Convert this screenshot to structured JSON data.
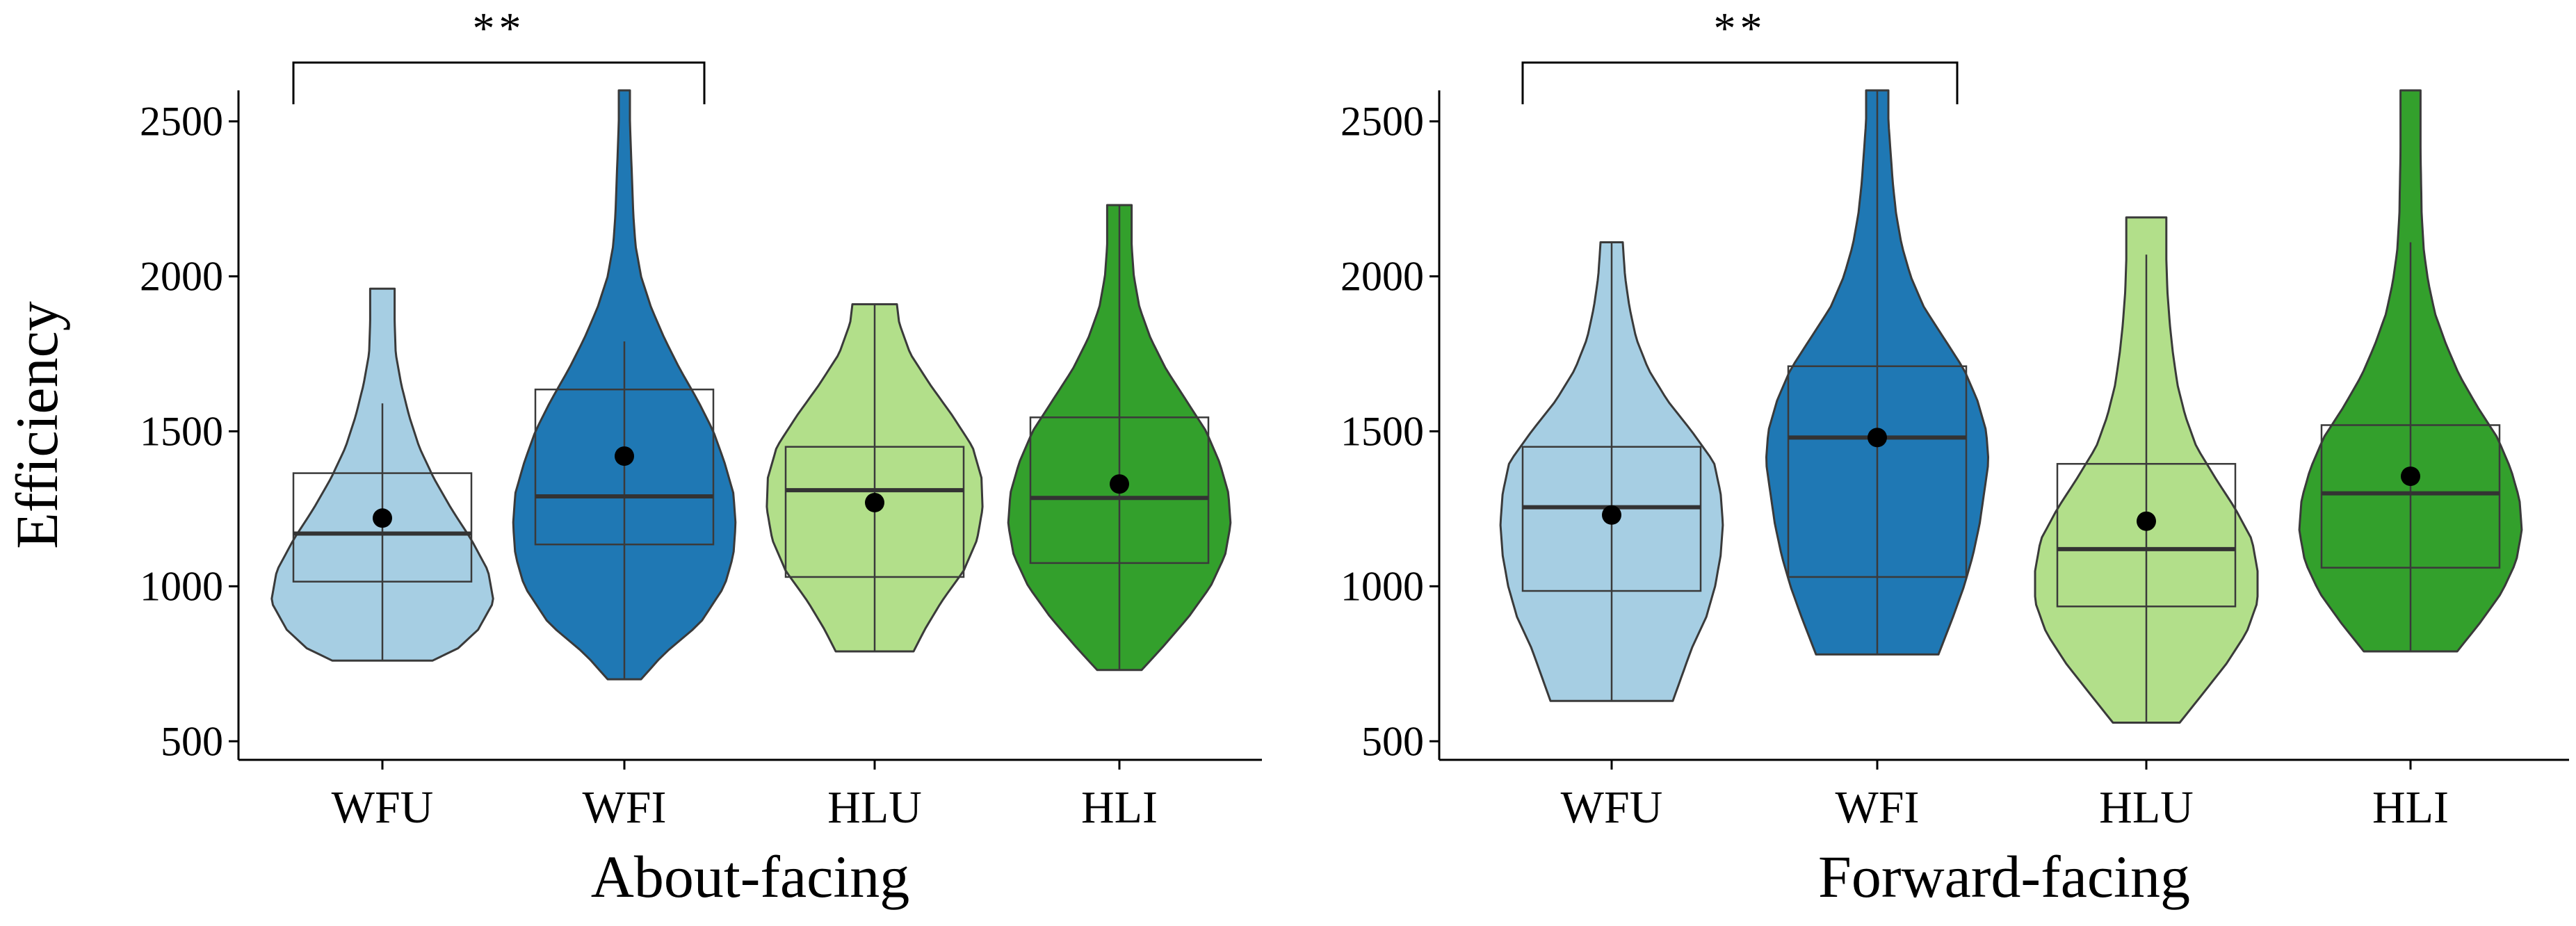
{
  "chart_data": {
    "type": "violin",
    "ylabel": "Efficiency",
    "ylim": [
      440,
      2600
    ],
    "yticks": [
      500,
      1000,
      1500,
      2000,
      2500
    ],
    "ytick_labels": [
      "500",
      "1000",
      "1500",
      "2000",
      "2500"
    ],
    "colors": {
      "WFU": "#a6cee3",
      "WFI": "#1f78b4",
      "HLU": "#b2df8a",
      "HLI": "#33a02c"
    },
    "panels": [
      {
        "xlabel": "About-facing",
        "categories": [
          "WFU",
          "WFI",
          "HLU",
          "HLI"
        ],
        "significance": {
          "from": "WFU",
          "to": "WFI",
          "label": "**"
        },
        "groups": [
          {
            "name": "WFU",
            "min": 760,
            "max": 1960,
            "q1": 1015,
            "median": 1170,
            "q3": 1365,
            "whisker_low": 760,
            "whisker_high": 1590,
            "mean": 1220,
            "density": [
              [
                760,
                0.45
              ],
              [
                800,
                0.68
              ],
              [
                860,
                0.86
              ],
              [
                950,
                1.0
              ],
              [
                1050,
                0.95
              ],
              [
                1150,
                0.8
              ],
              [
                1250,
                0.62
              ],
              [
                1350,
                0.46
              ],
              [
                1450,
                0.33
              ],
              [
                1550,
                0.24
              ],
              [
                1650,
                0.17
              ],
              [
                1750,
                0.12
              ],
              [
                1850,
                0.11
              ],
              [
                1960,
                0.11
              ]
            ]
          },
          {
            "name": "WFI",
            "min": 700,
            "max": 2600,
            "q1": 1135,
            "median": 1290,
            "q3": 1635,
            "whisker_low": 700,
            "whisker_high": 1790,
            "mean": 1420,
            "density": [
              [
                700,
                0.15
              ],
              [
                780,
                0.35
              ],
              [
                880,
                0.68
              ],
              [
                1000,
                0.9
              ],
              [
                1100,
                0.98
              ],
              [
                1200,
                1.0
              ],
              [
                1300,
                0.98
              ],
              [
                1400,
                0.9
              ],
              [
                1500,
                0.8
              ],
              [
                1600,
                0.66
              ],
              [
                1700,
                0.5
              ],
              [
                1800,
                0.36
              ],
              [
                1900,
                0.24
              ],
              [
                2000,
                0.15
              ],
              [
                2100,
                0.1
              ],
              [
                2200,
                0.08
              ],
              [
                2300,
                0.07
              ],
              [
                2400,
                0.06
              ],
              [
                2500,
                0.05
              ],
              [
                2600,
                0.05
              ]
            ]
          },
          {
            "name": "HLU",
            "min": 790,
            "max": 1910,
            "q1": 1030,
            "median": 1310,
            "q3": 1450,
            "whisker_low": 790,
            "whisker_high": 1910,
            "mean": 1270,
            "density": [
              [
                790,
                0.35
              ],
              [
                860,
                0.45
              ],
              [
                950,
                0.6
              ],
              [
                1050,
                0.8
              ],
              [
                1150,
                0.92
              ],
              [
                1250,
                0.97
              ],
              [
                1350,
                0.96
              ],
              [
                1450,
                0.88
              ],
              [
                1550,
                0.7
              ],
              [
                1650,
                0.5
              ],
              [
                1750,
                0.32
              ],
              [
                1850,
                0.22
              ],
              [
                1910,
                0.2
              ]
            ]
          },
          {
            "name": "HLI",
            "min": 730,
            "max": 2230,
            "q1": 1075,
            "median": 1285,
            "q3": 1545,
            "whisker_low": 730,
            "whisker_high": 2230,
            "mean": 1330,
            "density": [
              [
                730,
                0.2
              ],
              [
                800,
                0.38
              ],
              [
                900,
                0.62
              ],
              [
                1000,
                0.82
              ],
              [
                1100,
                0.95
              ],
              [
                1200,
                1.0
              ],
              [
                1300,
                0.98
              ],
              [
                1400,
                0.9
              ],
              [
                1500,
                0.78
              ],
              [
                1600,
                0.6
              ],
              [
                1700,
                0.42
              ],
              [
                1800,
                0.28
              ],
              [
                1900,
                0.18
              ],
              [
                2000,
                0.13
              ],
              [
                2100,
                0.11
              ],
              [
                2230,
                0.11
              ]
            ]
          }
        ]
      },
      {
        "xlabel": "Forward-facing",
        "categories": [
          "WFU",
          "WFI",
          "HLU",
          "HLI"
        ],
        "significance": {
          "from": "WFU",
          "to": "WFI",
          "label": "**"
        },
        "groups": [
          {
            "name": "WFU",
            "min": 630,
            "max": 2110,
            "q1": 985,
            "median": 1255,
            "q3": 1450,
            "whisker_low": 630,
            "whisker_high": 2110,
            "mean": 1230,
            "density": [
              [
                630,
                0.55
              ],
              [
                700,
                0.62
              ],
              [
                800,
                0.72
              ],
              [
                900,
                0.85
              ],
              [
                1000,
                0.93
              ],
              [
                1100,
                0.98
              ],
              [
                1200,
                1.0
              ],
              [
                1300,
                0.98
              ],
              [
                1400,
                0.92
              ],
              [
                1500,
                0.72
              ],
              [
                1600,
                0.5
              ],
              [
                1700,
                0.33
              ],
              [
                1800,
                0.22
              ],
              [
                1900,
                0.16
              ],
              [
                2000,
                0.12
              ],
              [
                2110,
                0.1
              ]
            ]
          },
          {
            "name": "WFI",
            "min": 780,
            "max": 2600,
            "q1": 1030,
            "median": 1480,
            "q3": 1710,
            "whisker_low": 780,
            "whisker_high": 2600,
            "mean": 1480,
            "density": [
              [
                780,
                0.55
              ],
              [
                900,
                0.68
              ],
              [
                1000,
                0.78
              ],
              [
                1100,
                0.86
              ],
              [
                1200,
                0.92
              ],
              [
                1300,
                0.96
              ],
              [
                1400,
                1.0
              ],
              [
                1500,
                0.98
              ],
              [
                1600,
                0.9
              ],
              [
                1700,
                0.78
              ],
              [
                1800,
                0.6
              ],
              [
                1900,
                0.42
              ],
              [
                2000,
                0.3
              ],
              [
                2100,
                0.22
              ],
              [
                2200,
                0.17
              ],
              [
                2300,
                0.14
              ],
              [
                2400,
                0.12
              ],
              [
                2500,
                0.1
              ],
              [
                2600,
                0.1
              ]
            ]
          },
          {
            "name": "HLU",
            "min": 560,
            "max": 2190,
            "q1": 935,
            "median": 1120,
            "q3": 1395,
            "whisker_low": 560,
            "whisker_high": 2070,
            "mean": 1210,
            "density": [
              [
                560,
                0.3
              ],
              [
                650,
                0.5
              ],
              [
                750,
                0.72
              ],
              [
                850,
                0.9
              ],
              [
                950,
                1.0
              ],
              [
                1050,
                1.0
              ],
              [
                1150,
                0.95
              ],
              [
                1250,
                0.8
              ],
              [
                1350,
                0.62
              ],
              [
                1450,
                0.45
              ],
              [
                1550,
                0.35
              ],
              [
                1650,
                0.28
              ],
              [
                1750,
                0.24
              ],
              [
                1850,
                0.21
              ],
              [
                1950,
                0.19
              ],
              [
                2050,
                0.18
              ],
              [
                2190,
                0.18
              ]
            ]
          },
          {
            "name": "HLI",
            "min": 790,
            "max": 2600,
            "q1": 1060,
            "median": 1300,
            "q3": 1520,
            "whisker_low": 790,
            "whisker_high": 2110,
            "mean": 1355,
            "density": [
              [
                790,
                0.42
              ],
              [
                880,
                0.62
              ],
              [
                980,
                0.82
              ],
              [
                1080,
                0.95
              ],
              [
                1180,
                1.0
              ],
              [
                1280,
                0.98
              ],
              [
                1380,
                0.9
              ],
              [
                1480,
                0.78
              ],
              [
                1580,
                0.6
              ],
              [
                1680,
                0.44
              ],
              [
                1780,
                0.32
              ],
              [
                1880,
                0.22
              ],
              [
                1980,
                0.16
              ],
              [
                2080,
                0.12
              ],
              [
                2200,
                0.1
              ],
              [
                2400,
                0.09
              ],
              [
                2600,
                0.09
              ]
            ]
          }
        ]
      }
    ]
  }
}
